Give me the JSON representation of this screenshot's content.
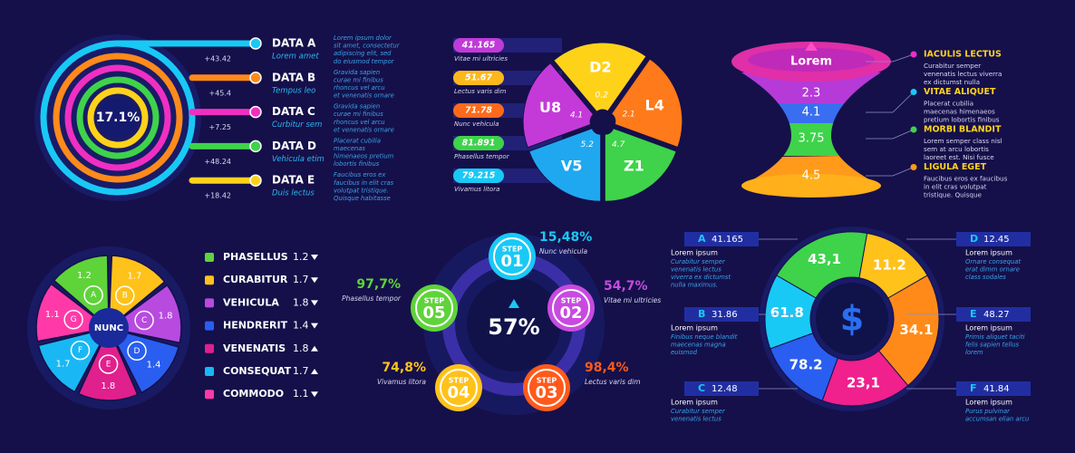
{
  "rings": {
    "center": "17.1%",
    "items": [
      {
        "label": "DATA A",
        "sub": "Lorem amet",
        "delta": "+43.42",
        "desc": [
          "Lorem ipsum dolor",
          "sit amet, consectetur",
          "adipiscing elit, sed",
          "do eiusmod tempor"
        ]
      },
      {
        "label": "DATA B",
        "sub": "Tempus leo",
        "delta": "+45.4",
        "desc": [
          "Gravida sapien",
          "curae mi finibus",
          "rhoncus vel arcu",
          "et venenatis ornare"
        ]
      },
      {
        "label": "DATA C",
        "sub": "Curbitur sem",
        "delta": "+7.25",
        "desc": [
          "Gravida sapien",
          "curae mi finibus",
          "rhoncus vel arcu",
          "et venenatis ornare"
        ]
      },
      {
        "label": "DATA D",
        "sub": "Vehicula etim",
        "delta": "+48.24",
        "desc": [
          "Placerat cubilia",
          "maecenas",
          "himenaeos pretium",
          "lobortis finibus"
        ]
      },
      {
        "label": "DATA E",
        "sub": "Duis lectus",
        "delta": "+18.42",
        "desc": [
          "Faucibus eros ex",
          "faucibus in elit cras",
          "volutpat tristique.",
          "Quisque habitasse"
        ]
      }
    ]
  },
  "pie": {
    "labels": [
      {
        "value": 41.165,
        "caption": "Vitae mi ultricies"
      },
      {
        "value": 51.67,
        "caption": "Lectus varis dim"
      },
      {
        "value": 71.78,
        "caption": "Nunc vehicula"
      },
      {
        "value": 81.891,
        "caption": "Phasellus tempor"
      },
      {
        "value": 79.215,
        "caption": "Vivamus litora"
      }
    ],
    "segments": [
      {
        "name": "D2",
        "value": 0.2
      },
      {
        "name": "L4",
        "value": 2.1
      },
      {
        "name": "Z1",
        "value": 4.7
      },
      {
        "name": "V5",
        "value": 5.2
      },
      {
        "name": "U8",
        "value": 4.1
      }
    ]
  },
  "funnel": {
    "title": "Lorem",
    "values": [
      2.3,
      4.1,
      3.75,
      4.5
    ],
    "items": [
      {
        "title": "IACULIS LECTUS",
        "desc": [
          "Curabitur semper",
          "venenatis lectus viverra",
          "ex dictumst nulla"
        ]
      },
      {
        "title": "VITAE ALIQUET",
        "desc": [
          "Placerat cubilia",
          "maecenas himenaeos",
          "pretium lobortis finibus"
        ]
      },
      {
        "title": "MORBI BLANDIT",
        "desc": [
          "Lorem semper class nisl",
          "sem at arcu lobortis",
          "laoreet est. Nisi fusce"
        ]
      },
      {
        "title": "LIGULA EGET",
        "desc": [
          "Faucibus eros ex faucibus",
          "in elit cras volutpat",
          "tristique. Quisque"
        ]
      }
    ]
  },
  "petals": {
    "center": "NUNC",
    "petals": [
      {
        "letter": "A",
        "value": 1.2
      },
      {
        "letter": "B",
        "value": 1.7
      },
      {
        "letter": "C",
        "value": 1.8
      },
      {
        "letter": "D",
        "value": 1.4
      },
      {
        "letter": "E",
        "value": 1.8
      },
      {
        "letter": "F",
        "value": 1.7
      },
      {
        "letter": "G",
        "value": 1.1
      }
    ],
    "legend": [
      {
        "name": "PHASELLUS",
        "value": 1.2,
        "trend": "down"
      },
      {
        "name": "CURABITUR",
        "value": 1.7,
        "trend": "down"
      },
      {
        "name": "VEHICULA",
        "value": 1.8,
        "trend": "down"
      },
      {
        "name": "HENDRERIT",
        "value": 1.4,
        "trend": "down"
      },
      {
        "name": "VENENATIS",
        "value": 1.8,
        "trend": "up"
      },
      {
        "name": "CONSEQUAT",
        "value": 1.7,
        "trend": "up"
      },
      {
        "name": "COMMODO",
        "value": 1.1,
        "trend": "down"
      }
    ]
  },
  "steps": {
    "center": "57%",
    "items": [
      {
        "word": "STEP",
        "number": "01",
        "percent": "15,48%",
        "caption": "Nunc vehicula"
      },
      {
        "word": "STEP",
        "number": "02",
        "percent": "54,7%",
        "caption": "Vitae mi ultricies"
      },
      {
        "word": "STEP",
        "number": "03",
        "percent": "98,4%",
        "caption": "Lectus varis dim"
      },
      {
        "word": "STEP",
        "number": "04",
        "percent": "74,8%",
        "caption": "Vivamus litora"
      },
      {
        "word": "STEP",
        "number": "05",
        "percent": "97,7%",
        "caption": "Phasellus tempor"
      }
    ]
  },
  "donut": {
    "symbol": "$",
    "segments": [
      "43,1",
      11.2,
      34.1,
      "23,1",
      78.2,
      61.8
    ],
    "items": [
      {
        "letter": "A",
        "value": 41.165,
        "title": "Lorem ipsum",
        "desc": [
          "Curabitur semper",
          "venenatis lectus",
          "viverra ex dictumst",
          "nulla maximus."
        ]
      },
      {
        "letter": "B",
        "value": 31.86,
        "title": "Lorem ipsum",
        "desc": [
          "Finibus neque blandit",
          "maecenas magna",
          "euismod"
        ]
      },
      {
        "letter": "C",
        "value": 12.48,
        "title": "Lorem ipsum",
        "desc": [
          "Curabitur semper",
          "venenatis lectus"
        ]
      },
      {
        "letter": "D",
        "value": 12.45,
        "title": "Lorem ipsum",
        "desc": [
          "Ornare consequat",
          "erat dimm ornare",
          "class sodales"
        ]
      },
      {
        "letter": "E",
        "value": 48.27,
        "title": "Lorem ipsum",
        "desc": [
          "Primis aliquet taciti",
          "felis sapien tellus",
          "lorem"
        ]
      },
      {
        "letter": "F",
        "value": 41.84,
        "title": "Lorem ipsum",
        "desc": [
          "Purus pulvinar",
          "accumsan elian arcu"
        ]
      }
    ]
  }
}
